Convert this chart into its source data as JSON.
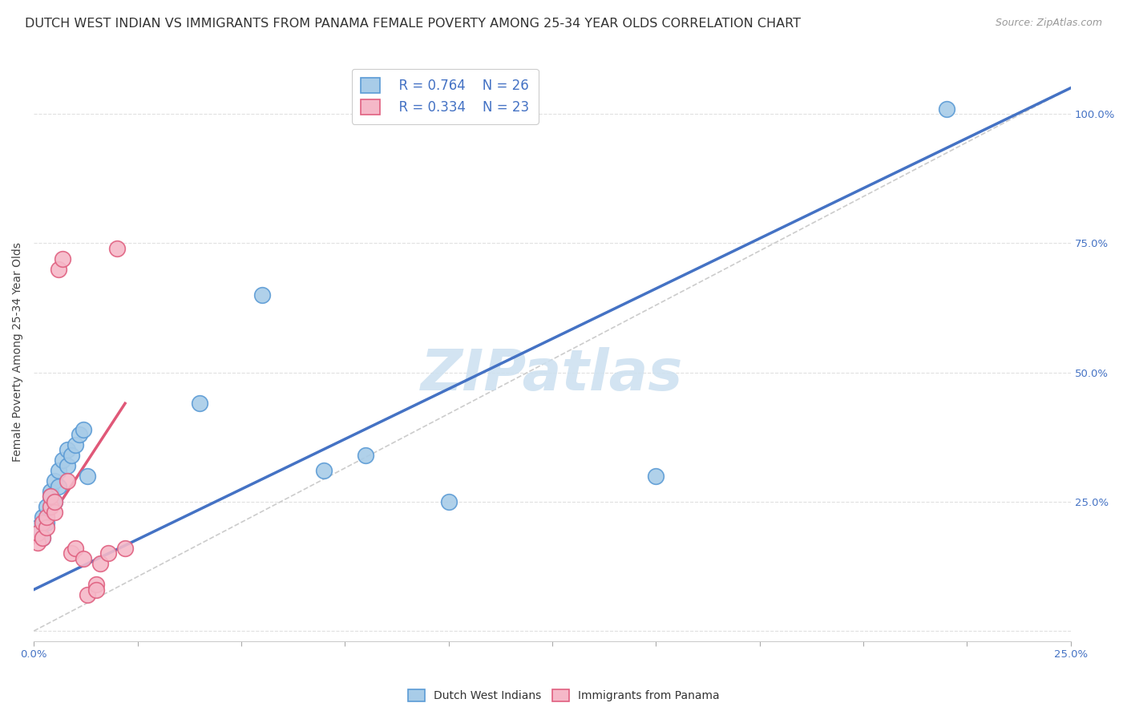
{
  "title": "DUTCH WEST INDIAN VS IMMIGRANTS FROM PANAMA FEMALE POVERTY AMONG 25-34 YEAR OLDS CORRELATION CHART",
  "source": "Source: ZipAtlas.com",
  "ylabel": "Female Poverty Among 25-34 Year Olds",
  "xlim": [
    0.0,
    0.25
  ],
  "ylim": [
    -0.02,
    1.1
  ],
  "xticks": [
    0.0,
    0.025,
    0.05,
    0.075,
    0.1,
    0.125,
    0.15,
    0.175,
    0.2,
    0.225,
    0.25
  ],
  "xticklabels": [
    "0.0%",
    "",
    "",
    "",
    "",
    "",
    "",
    "",
    "",
    "",
    "25.0%"
  ],
  "yticks": [
    0.0,
    0.25,
    0.5,
    0.75,
    1.0
  ],
  "yticklabels": [
    "",
    "25.0%",
    "50.0%",
    "75.0%",
    "100.0%"
  ],
  "blue_color": "#a8cce8",
  "pink_color": "#f5b8c8",
  "blue_edge_color": "#5b9bd5",
  "pink_edge_color": "#e06080",
  "blue_line_color": "#4472c4",
  "pink_line_color": "#e05878",
  "diag_line_color": "#cccccc",
  "watermark_color": "#cce0f0",
  "legend_label_blue": "Dutch West Indians",
  "legend_label_pink": "Immigrants from Panama",
  "legend_R_blue": "R = 0.764",
  "legend_N_blue": "N = 26",
  "legend_R_pink": "R = 0.334",
  "legend_N_pink": "N = 23",
  "blue_scatter_x": [
    0.001,
    0.002,
    0.002,
    0.003,
    0.003,
    0.004,
    0.004,
    0.005,
    0.005,
    0.006,
    0.006,
    0.007,
    0.008,
    0.008,
    0.009,
    0.01,
    0.011,
    0.012,
    0.013,
    0.04,
    0.055,
    0.07,
    0.08,
    0.1,
    0.15,
    0.22
  ],
  "blue_scatter_y": [
    0.2,
    0.22,
    0.18,
    0.24,
    0.21,
    0.27,
    0.26,
    0.29,
    0.25,
    0.31,
    0.28,
    0.33,
    0.32,
    0.35,
    0.34,
    0.36,
    0.38,
    0.39,
    0.3,
    0.44,
    0.65,
    0.31,
    0.34,
    0.25,
    0.3,
    1.01
  ],
  "pink_scatter_x": [
    0.001,
    0.001,
    0.002,
    0.002,
    0.003,
    0.003,
    0.004,
    0.004,
    0.005,
    0.005,
    0.006,
    0.007,
    0.008,
    0.009,
    0.01,
    0.012,
    0.013,
    0.015,
    0.015,
    0.016,
    0.018,
    0.02,
    0.022
  ],
  "pink_scatter_y": [
    0.17,
    0.19,
    0.21,
    0.18,
    0.2,
    0.22,
    0.24,
    0.26,
    0.23,
    0.25,
    0.7,
    0.72,
    0.29,
    0.15,
    0.16,
    0.14,
    0.07,
    0.09,
    0.08,
    0.13,
    0.15,
    0.74,
    0.16
  ],
  "blue_line_x": [
    0.0,
    0.25
  ],
  "blue_line_y": [
    0.08,
    1.05
  ],
  "pink_line_x": [
    0.0,
    0.022
  ],
  "pink_line_y": [
    0.17,
    0.44
  ],
  "diag_line_x": [
    0.0,
    0.25
  ],
  "diag_line_y": [
    0.0,
    1.05
  ],
  "background_color": "#ffffff",
  "grid_color": "#e0e0e0",
  "title_fontsize": 11.5,
  "axis_label_fontsize": 10,
  "tick_fontsize": 9.5,
  "legend_fontsize": 12,
  "scatter_size": 200,
  "scatter_linewidth": 1.2
}
